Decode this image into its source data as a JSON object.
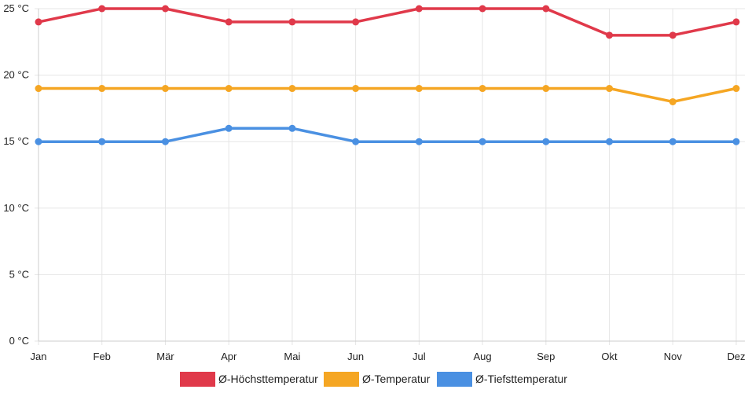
{
  "chart_data": {
    "type": "line",
    "categories": [
      "Jan",
      "Feb",
      "Mär",
      "Apr",
      "Mai",
      "Jun",
      "Jul",
      "Aug",
      "Sep",
      "Okt",
      "Nov",
      "Dez"
    ],
    "y_ticks": [
      "0 °C",
      "5 °C",
      "10 °C",
      "15 °C",
      "20 °C",
      "25 °C"
    ],
    "ylim": [
      0,
      25
    ],
    "grid": true,
    "legend_position": "bottom",
    "series": [
      {
        "name": "Ø-Höchsttemperatur",
        "color": "#e0394a",
        "values": [
          24,
          25,
          25,
          24,
          24,
          24,
          25,
          25,
          25,
          23,
          23,
          24
        ]
      },
      {
        "name": "Ø-Temperatur",
        "color": "#f5a623",
        "values": [
          19,
          19,
          19,
          19,
          19,
          19,
          19,
          19,
          19,
          19,
          18,
          19
        ]
      },
      {
        "name": "Ø-Tiefsttemperatur",
        "color": "#4a90e2",
        "values": [
          15,
          15,
          15,
          16,
          16,
          15,
          15,
          15,
          15,
          15,
          15,
          15
        ]
      }
    ]
  }
}
